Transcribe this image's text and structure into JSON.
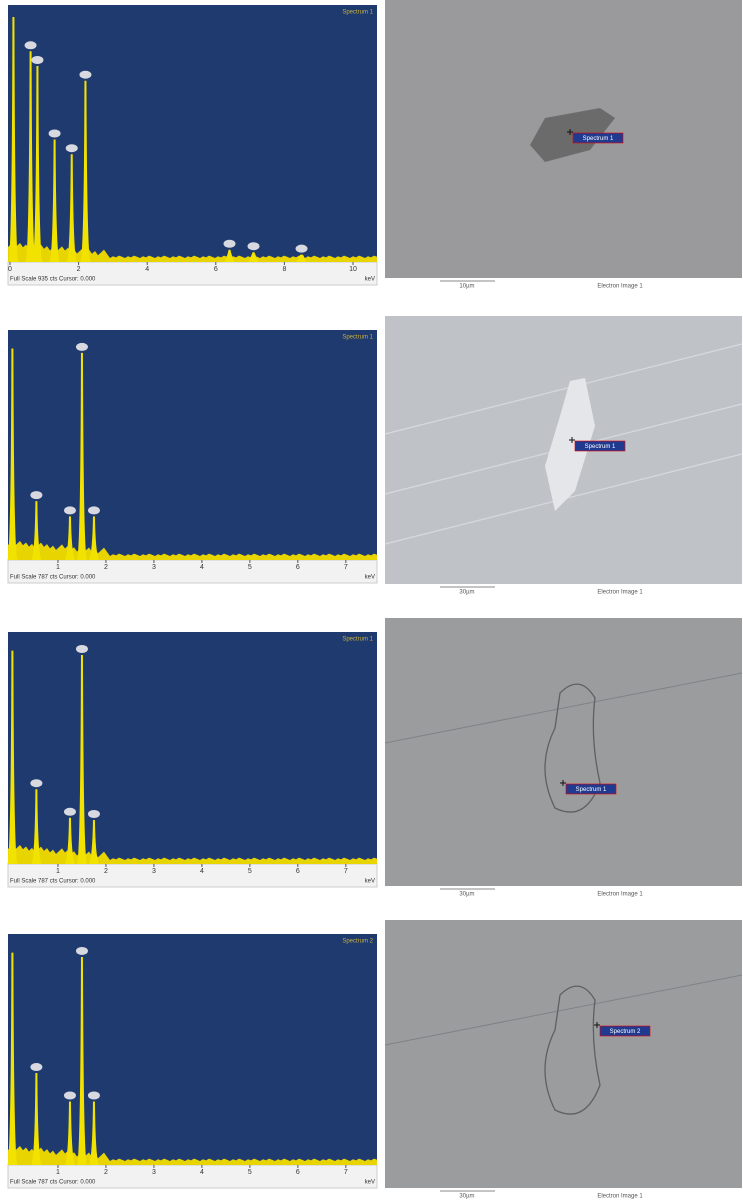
{
  "panels": [
    {
      "spectrum": {
        "title": "Spectrum 1",
        "footer": "Full Scale 935 cts Cursor: 0.000",
        "unit": "keV",
        "xlim": [
          0,
          10.7
        ],
        "xticks": [
          0,
          2,
          4,
          6,
          8,
          10
        ],
        "ylim": [
          0,
          1
        ],
        "peaks": [
          {
            "x": 0.1,
            "y": 1
          },
          {
            "x": 0.6,
            "y": 0.86
          },
          {
            "x": 0.8,
            "y": 0.8
          },
          {
            "x": 1.3,
            "y": 0.5
          },
          {
            "x": 1.8,
            "y": 0.44
          },
          {
            "x": 2.2,
            "y": 0.74
          },
          {
            "x": 6.4,
            "y": 0.05
          },
          {
            "x": 7.1,
            "y": 0.04
          },
          {
            "x": 8.5,
            "y": 0.03
          }
        ]
      },
      "image": {
        "marker": "Spectrum 1",
        "scale": "10µm",
        "caption": "Electron Image 1"
      }
    },
    {
      "spectrum": {
        "title": "Spectrum 1",
        "footer": "Full Scale 787 cts Cursor: 0.000",
        "unit": "keV",
        "xlim": [
          0,
          7.65
        ],
        "xticks": [
          1,
          2,
          3,
          4,
          5,
          6,
          7
        ],
        "ylim": [
          0,
          1
        ],
        "peaks": [
          {
            "x": 0.05,
            "y": 0.97
          },
          {
            "x": 0.55,
            "y": 0.27
          },
          {
            "x": 1.25,
            "y": 0.2
          },
          {
            "x": 1.5,
            "y": 0.95
          },
          {
            "x": 1.75,
            "y": 0.2
          }
        ]
      },
      "image": {
        "marker": "Spectrum 1",
        "scale": "30µm",
        "caption": "Electron Image 1"
      }
    },
    {
      "spectrum": {
        "title": "Spectrum 1",
        "footer": "Full Scale 787 cts Cursor: 0.000",
        "unit": "keV",
        "xlim": [
          0,
          7.65
        ],
        "xticks": [
          1,
          2,
          3,
          4,
          5,
          6,
          7
        ],
        "ylim": [
          0,
          1
        ],
        "peaks": [
          {
            "x": 0.05,
            "y": 0.97
          },
          {
            "x": 0.55,
            "y": 0.34
          },
          {
            "x": 1.25,
            "y": 0.21
          },
          {
            "x": 1.5,
            "y": 0.95
          },
          {
            "x": 1.75,
            "y": 0.2
          }
        ]
      },
      "image": {
        "marker": "Spectrum 1",
        "scale": "30µm",
        "caption": "Electron Image 1"
      }
    },
    {
      "spectrum": {
        "title": "Spectrum 2",
        "footer": "Full Scale 787 cts Cursor: 0.000",
        "unit": "keV",
        "xlim": [
          0,
          7.65
        ],
        "xticks": [
          1,
          2,
          3,
          4,
          5,
          6,
          7
        ],
        "ylim": [
          0,
          1
        ],
        "peaks": [
          {
            "x": 0.05,
            "y": 0.97
          },
          {
            "x": 0.55,
            "y": 0.42
          },
          {
            "x": 1.25,
            "y": 0.29
          },
          {
            "x": 1.5,
            "y": 0.95
          },
          {
            "x": 1.75,
            "y": 0.29
          }
        ]
      },
      "image": {
        "marker": "Spectrum 2",
        "scale": "30µm",
        "caption": "Electron Image 1"
      }
    }
  ]
}
